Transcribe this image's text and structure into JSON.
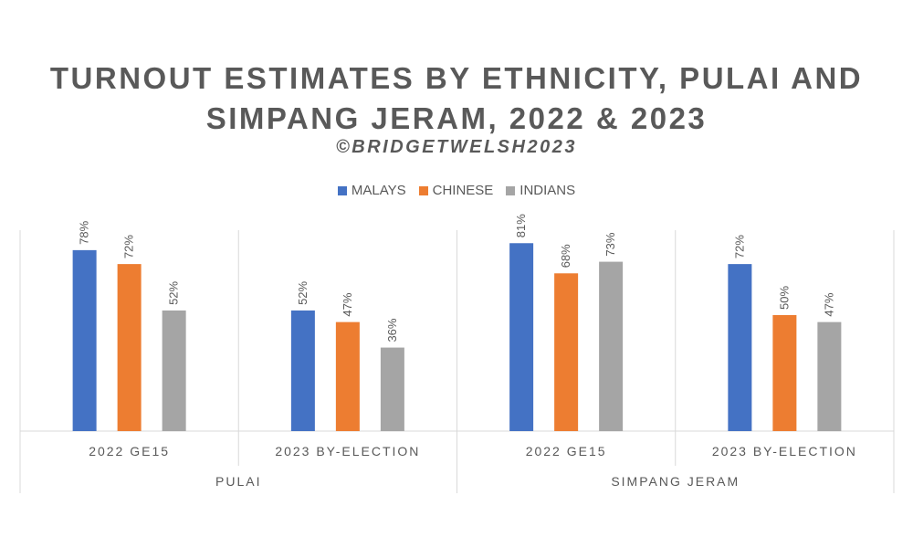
{
  "chart_data": {
    "type": "bar",
    "title_line1": "TURNOUT ESTIMATES BY ETHNICITY, PULAI AND",
    "title_line2": "SIMPANG JERAM, 2022 & 2023",
    "subtitle": "©BRIDGETWELSH2023",
    "legend_position": "top",
    "grid": false,
    "ylim": [
      0,
      90
    ],
    "groups": [
      "PULAI",
      "SIMPANG JERAM"
    ],
    "categories": [
      "2022 GE15",
      "2023 BY-ELECTION",
      "2022 GE15",
      "2023 BY-ELECTION"
    ],
    "category_group": [
      0,
      0,
      1,
      1
    ],
    "series": [
      {
        "name": "MALAYS",
        "color": "#4472C4",
        "values": [
          78,
          52,
          81,
          72
        ],
        "labels": [
          "78%",
          "52%",
          "81%",
          "72%"
        ]
      },
      {
        "name": "CHINESE",
        "color": "#ED7D31",
        "values": [
          72,
          47,
          68,
          50
        ],
        "labels": [
          "72%",
          "47%",
          "68%",
          "50%"
        ]
      },
      {
        "name": "INDIANS",
        "color": "#A5A5A5",
        "values": [
          52,
          36,
          73,
          47
        ],
        "labels": [
          "52%",
          "36%",
          "73%",
          "47%"
        ]
      }
    ]
  }
}
